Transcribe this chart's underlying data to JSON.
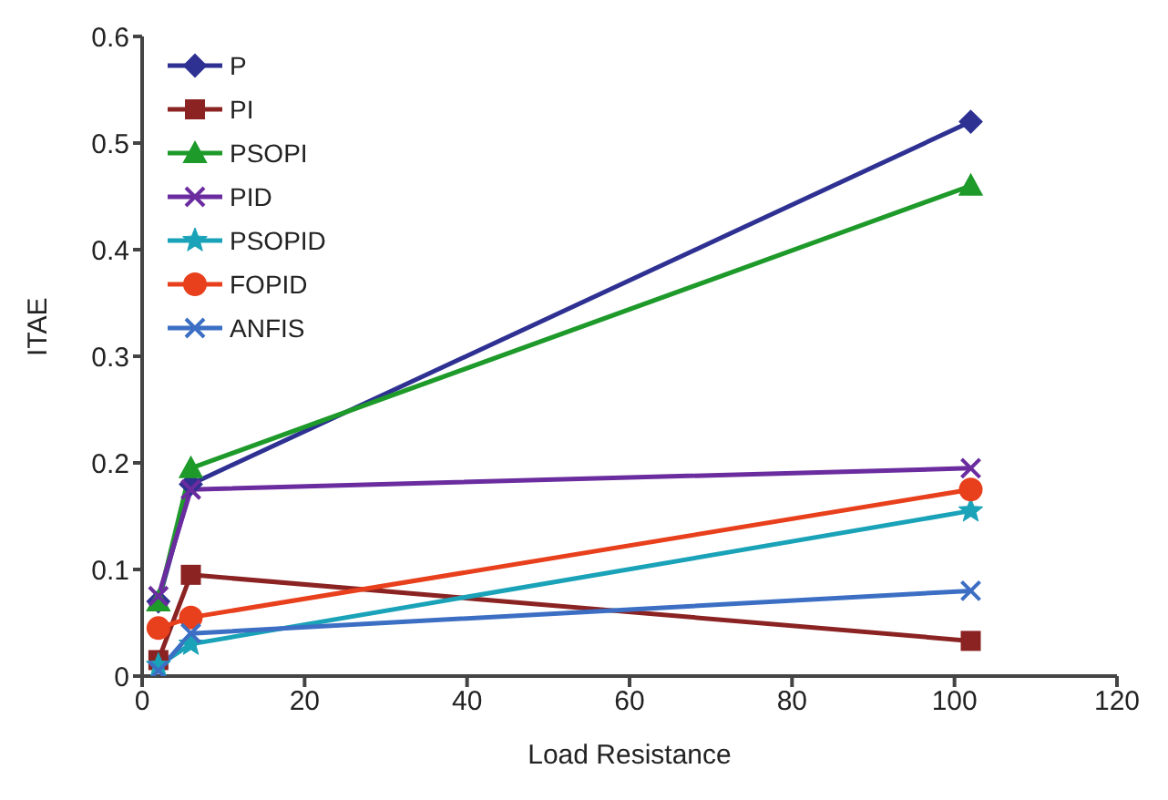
{
  "chart_data": {
    "type": "line",
    "xlabel": "Load Resistance",
    "ylabel": "ITAE",
    "x": [
      2,
      6,
      102
    ],
    "series": [
      {
        "name": "P",
        "color": "#2e3192",
        "marker": "diamond",
        "values": [
          0.07,
          0.18,
          0.52
        ]
      },
      {
        "name": "PI",
        "color": "#8b2323",
        "marker": "square",
        "values": [
          0.015,
          0.095,
          0.033
        ]
      },
      {
        "name": "PSOPI",
        "color": "#1e9a2a",
        "marker": "triangle",
        "values": [
          0.07,
          0.195,
          0.46
        ]
      },
      {
        "name": "PID",
        "color": "#6a2c9e",
        "marker": "cross",
        "values": [
          0.075,
          0.175,
          0.195
        ]
      },
      {
        "name": "PSOPID",
        "color": "#1aa3b8",
        "marker": "star",
        "values": [
          0.01,
          0.03,
          0.155
        ]
      },
      {
        "name": "FOPID",
        "color": "#e8401c",
        "marker": "circle",
        "values": [
          0.045,
          0.055,
          0.175
        ]
      },
      {
        "name": "ANFIS",
        "color": "#3c6fc4",
        "marker": "cross",
        "values": [
          0.005,
          0.04,
          0.08
        ]
      }
    ],
    "xlim": [
      0,
      120
    ],
    "xticks": [
      0,
      20,
      40,
      60,
      80,
      100,
      120
    ],
    "ylim": [
      0,
      0.6
    ],
    "yticks": [
      0,
      0.1,
      0.2,
      0.3,
      0.4,
      0.5,
      0.6
    ],
    "grid": false,
    "legend": "top left",
    "line_style": "solid"
  }
}
